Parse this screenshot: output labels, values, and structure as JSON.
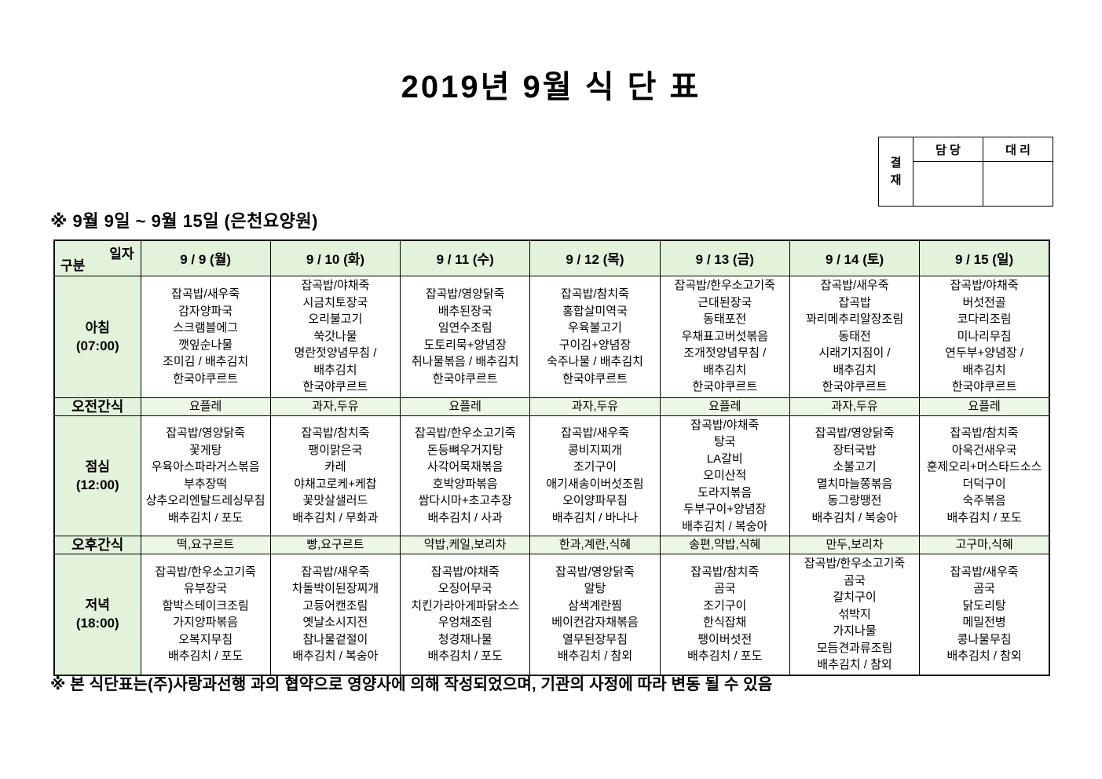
{
  "title": "2019년 9월 식 단 표",
  "approval": {
    "stamp_chars": [
      "결",
      "재"
    ],
    "columns": [
      "담 당",
      "대 리"
    ]
  },
  "subtitle": "※ 9월 9일 ~ 9월 15일 (은천요양원)",
  "table": {
    "corner": {
      "top_right": "일자",
      "bottom_left": "구분"
    },
    "days": [
      "9 / 9 (월)",
      "9 / 10 (화)",
      "9 / 11 (수)",
      "9 / 12 (목)",
      "9 / 13 (금)",
      "9 / 14 (토)",
      "9 / 15 (일)"
    ],
    "rows": [
      {
        "id": "breakfast",
        "type": "meal",
        "label_lines": [
          "아침",
          "(07:00)"
        ],
        "cells": [
          [
            "잡곡밥/새우죽",
            "감자양파국",
            "스크램블에그",
            "깻잎순나물",
            "조미김 / 배추김치",
            "한국야쿠르트"
          ],
          [
            "잡곡밥/야채죽",
            "시금치토장국",
            "오리불고기",
            "쑥갓나물",
            "명란젓양념무침 /",
            "배추김치",
            "한국야쿠르트"
          ],
          [
            "잡곡밥/영양닭죽",
            "배추된장국",
            "임연수조림",
            "도토리묵+양념장",
            "취나물볶음 / 배추김치",
            "한국야쿠르트"
          ],
          [
            "잡곡밥/참치죽",
            "홍합살미역국",
            "우육불고기",
            "구이김+양념장",
            "숙주나물 / 배추김치",
            "한국야쿠르트"
          ],
          [
            "잡곡밥/한우소고기죽",
            "근대된장국",
            "동태포전",
            "우채표고버섯볶음",
            "조개젓양념무침 /",
            "배추김치",
            "한국야쿠르트"
          ],
          [
            "잡곡밥/새우죽",
            "잡곡밥",
            "꽈리메추리알장조림",
            "동태전",
            "시래기지짐이 /",
            "배추김치",
            "한국야쿠르트"
          ],
          [
            "잡곡밥/야채죽",
            "버섯전골",
            "코다리조림",
            "미나리무침",
            "연두부+양념장 /",
            "배추김치",
            "한국야쿠르트"
          ]
        ]
      },
      {
        "id": "morning-snack",
        "type": "snack",
        "label_lines": [
          "오전간식"
        ],
        "cells": [
          "요플레",
          "과자,두유",
          "요플레",
          "과자,두유",
          "요플레",
          "과자,두유",
          "요플레"
        ]
      },
      {
        "id": "lunch",
        "type": "meal",
        "label_lines": [
          "점심",
          "(12:00)"
        ],
        "cells": [
          [
            "잡곡밥/영양닭죽",
            "꽃게탕",
            "우육아스파라거스볶음",
            "부추장떡",
            "상추오리엔탈드레싱무침",
            "배추김치 / 포도"
          ],
          [
            "잡곡밥/참치죽",
            "팽이맑은국",
            "카레",
            "야채고로케+케찹",
            "꽃맛살샐러드",
            "배추김치 / 무화과"
          ],
          [
            "잡곡밥/한우소고기죽",
            "돈등뼈우거지탕",
            "사각어묵채볶음",
            "호박양파볶음",
            "쌈다시마+초고추장",
            "배추김치 / 사과"
          ],
          [
            "잡곡밥/새우죽",
            "콩비지찌개",
            "조기구이",
            "애기새송이버섯조림",
            "오이양파무침",
            "배추김치 / 바나나"
          ],
          [
            "잡곡밥/야채죽",
            "탕국",
            "LA갈비",
            "오미산적",
            "도라지볶음",
            "두부구이+양념장",
            "배추김치 / 복숭아"
          ],
          [
            "잡곡밥/영양닭죽",
            "장터국밥",
            "소불고기",
            "멸치마늘쫑볶음",
            "동그랑땡전",
            "배추김치 / 복숭아"
          ],
          [
            "잡곡밥/참치죽",
            "아욱건새우국",
            "훈제오리+머스타드소스",
            "더덕구이",
            "숙주볶음",
            "배추김치 / 포도"
          ]
        ]
      },
      {
        "id": "afternoon-snack",
        "type": "snack",
        "label_lines": [
          "오후간식"
        ],
        "cells": [
          "떡,요구르트",
          "빵,요구르트",
          "약밥,케일,보리차",
          "한과,계란,식혜",
          "송편,약밥,식혜",
          "만두,보리차",
          "고구마,식혜"
        ]
      },
      {
        "id": "dinner",
        "type": "meal",
        "label_lines": [
          "저녁",
          "(18:00)"
        ],
        "cells": [
          [
            "잡곡밥/한우소고기죽",
            "유부장국",
            "함박스테이크조림",
            "가지양파볶음",
            "오복지무침",
            "배추김치 / 포도"
          ],
          [
            "잡곡밥/새우죽",
            "차돌박이된장찌개",
            "고등어캔조림",
            "옛날소시지전",
            "참나물겉절이",
            "배추김치 / 복숭아"
          ],
          [
            "잡곡밥/야채죽",
            "오징어무국",
            "치킨가라아게파닭소스",
            "우엉채조림",
            "청경채나물",
            "배추김치 / 포도"
          ],
          [
            "잡곡밥/영양닭죽",
            "알탕",
            "삼색계란찜",
            "베이컨감자채볶음",
            "열무된장무침",
            "배추김치 / 참외"
          ],
          [
            "잡곡밥/참치죽",
            "곰국",
            "조기구이",
            "한식잡채",
            "팽이버섯전",
            "배추김치 / 포도"
          ],
          [
            "잡곡밥/한우소고기죽",
            "곰국",
            "갈치구이",
            "섞박지",
            "가지나물",
            "모듬견과류조림",
            "배추김치 / 참외"
          ],
          [
            "잡곡밥/새우죽",
            "곰국",
            "닭도리탕",
            "메밀전병",
            "콩나물무침",
            "배추김치 / 참외"
          ]
        ]
      }
    ]
  },
  "footnote": "※ 본 식단표는(주)사랑과선행 과의 협약으로 영양사에 의해 작성되었으며, 기관의 사정에 따라 변동 될 수 있음",
  "colors": {
    "header_green": "#E3F3DB",
    "snack_green": "#EDF7E6",
    "border": "#000000"
  }
}
